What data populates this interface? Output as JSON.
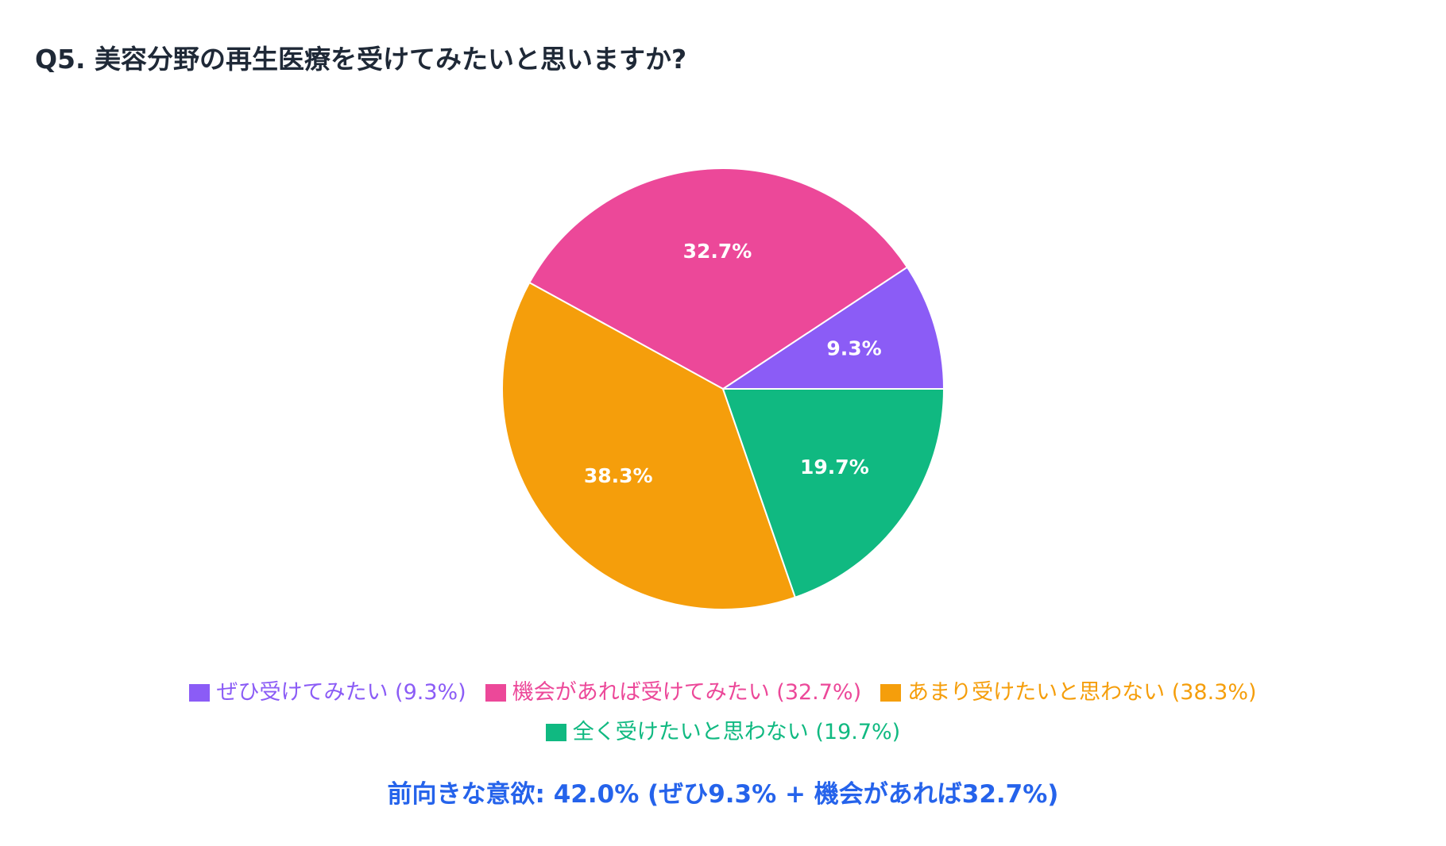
{
  "chart_data": {
    "type": "pie",
    "title": "Q5. 美容分野の再生医療を受けてみたいと思いますか?",
    "categories": [
      "ぜひ受けてみたい",
      "機会があれば受けてみたい",
      "あまり受けたいと思わない",
      "全く受けたいと思わない"
    ],
    "values": [
      9.3,
      32.7,
      38.3,
      19.7
    ],
    "slice_labels": [
      "9.3%",
      "32.7%",
      "38.3%",
      "19.7%"
    ],
    "colors": [
      "#8b5cf6",
      "#ec4899",
      "#f59e0b",
      "#10b981"
    ],
    "legend_placement": "bottom",
    "legend": [
      {
        "label": "ぜひ受けてみたい (9.3%)",
        "color": "#8b5cf6"
      },
      {
        "label": "機会があれば受けてみたい (32.7%)",
        "color": "#ec4899"
      },
      {
        "label": "あまり受けたいと思わない (38.3%)",
        "color": "#f59e0b"
      },
      {
        "label": "全く受けたいと思わない (19.7%)",
        "color": "#10b981"
      }
    ],
    "summary": "前向きな意欲: 42.0% (ぜひ9.3% + 機会があれば32.7%)",
    "summary_color": "#2563eb"
  }
}
